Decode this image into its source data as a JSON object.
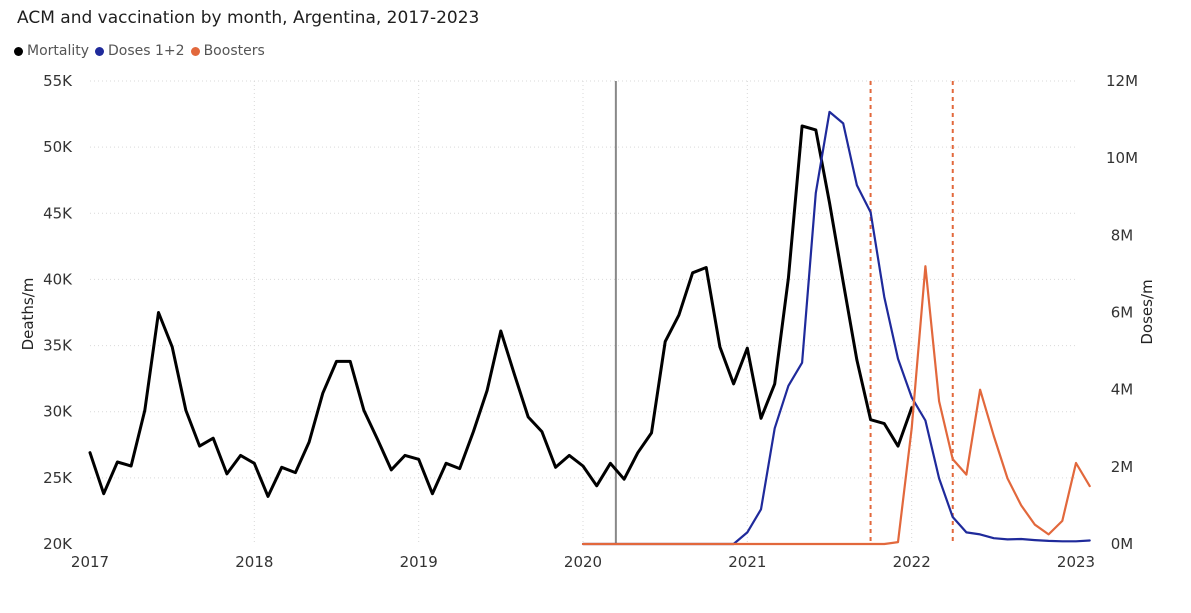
{
  "chart_data": {
    "type": "line",
    "title": "ACM and vaccination by month, Argentina, 2017-2023",
    "ylabel": "Deaths/m",
    "y2label": "Doses/m",
    "ylim": [
      20000,
      55000
    ],
    "y2lim": [
      0,
      12000000
    ],
    "y_ticks": [
      "20K",
      "25K",
      "30K",
      "35K",
      "40K",
      "45K",
      "50K",
      "55K"
    ],
    "y_tick_values": [
      20000,
      25000,
      30000,
      35000,
      40000,
      45000,
      50000,
      55000
    ],
    "y2_ticks": [
      "0M",
      "2M",
      "4M",
      "6M",
      "8M",
      "10M",
      "12M"
    ],
    "y2_tick_values": [
      0,
      2000000,
      4000000,
      6000000,
      8000000,
      10000000,
      12000000
    ],
    "x_ticks": [
      "2017",
      "2018",
      "2019",
      "2020",
      "2021",
      "2022",
      "2023"
    ],
    "x_tick_values": [
      2017,
      2018,
      2019,
      2020,
      2021,
      2022,
      2023
    ],
    "xlim": [
      2017,
      2023
    ],
    "grid": true,
    "legend_position": "top-left",
    "vertical_lines": [
      {
        "x": 2020.2,
        "style": "solid",
        "color": "#888888"
      },
      {
        "x": 2021.75,
        "style": "dashed",
        "color": "#e2683c"
      },
      {
        "x": 2022.25,
        "style": "dashed",
        "color": "#e2683c"
      }
    ],
    "series": [
      {
        "name": "Mortality",
        "axis": "left",
        "color": "#000000",
        "x_start": 2017,
        "step": 0.0833333,
        "values": [
          26900,
          23800,
          26200,
          25900,
          30100,
          37500,
          34900,
          30100,
          27400,
          28000,
          25300,
          26700,
          26100,
          23600,
          25800,
          25400,
          27700,
          31400,
          33800,
          33800,
          30100,
          27900,
          25600,
          26700,
          26400,
          23800,
          26100,
          25700,
          28500,
          31600,
          36100,
          32800,
          29600,
          28500,
          25800,
          26700,
          25900,
          24400,
          26100,
          24900,
          26900,
          28400,
          35300,
          37300,
          40500,
          40900,
          34900,
          32100,
          34800,
          29500,
          32100,
          40100,
          51600,
          51300,
          45800,
          39800,
          33900,
          29400,
          29100,
          27400,
          30300
        ]
      },
      {
        "name": "Doses 1+2",
        "axis": "right",
        "color": "#1f2a9b",
        "x_start": 2020,
        "step": 0.0833333,
        "values": [
          0,
          0,
          0,
          0,
          0,
          0,
          0,
          0,
          0,
          0,
          0,
          0,
          300000,
          900000,
          3000000,
          4100000,
          4700000,
          9100000,
          11200000,
          10900000,
          9300000,
          8600000,
          6400000,
          4800000,
          3800000,
          3200000,
          1700000,
          700000,
          300000,
          250000,
          150000,
          120000,
          130000,
          100000,
          80000,
          70000,
          70000,
          90000
        ]
      },
      {
        "name": "Boosters",
        "axis": "right",
        "color": "#e2683c",
        "x_start": 2020,
        "step": 0.0833333,
        "values": [
          0,
          0,
          0,
          0,
          0,
          0,
          0,
          0,
          0,
          0,
          0,
          0,
          0,
          0,
          0,
          0,
          0,
          0,
          0,
          0,
          0,
          0,
          0,
          50000,
          3000000,
          7200000,
          3700000,
          2200000,
          1800000,
          4000000,
          2800000,
          1700000,
          1000000,
          500000,
          250000,
          600000,
          2100000,
          1500000
        ]
      }
    ]
  }
}
